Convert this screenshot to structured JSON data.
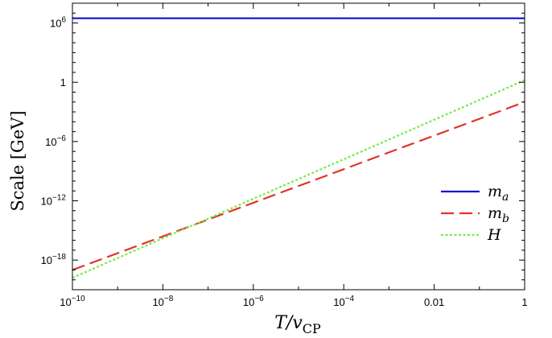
{
  "chart_data": {
    "type": "line",
    "xscale": "log",
    "yscale": "log",
    "xlabel": {
      "main": "T/v",
      "sub": "CP"
    },
    "ylabel": "Scale [GeV]",
    "xlim": [
      1e-10,
      1
    ],
    "ylim": [
      1e-21,
      100000000.0
    ],
    "x_ticks": [
      {
        "value": 1e-10,
        "base": "10",
        "exp": "−10"
      },
      {
        "value": 1e-08,
        "base": "10",
        "exp": "−8"
      },
      {
        "value": 1e-06,
        "base": "10",
        "exp": "−6"
      },
      {
        "value": 0.0001,
        "base": "10",
        "exp": "−4"
      },
      {
        "value": 0.01,
        "text": "0.01"
      },
      {
        "value": 1,
        "text": "1"
      }
    ],
    "y_ticks": [
      {
        "value": 1e-18,
        "base": "10",
        "exp": "−18"
      },
      {
        "value": 1e-12,
        "base": "10",
        "exp": "−12"
      },
      {
        "value": 1e-06,
        "base": "10",
        "exp": "−6"
      },
      {
        "value": 1,
        "text": "1"
      },
      {
        "value": 1000000.0,
        "base": "10",
        "exp": "6"
      }
    ],
    "grid": false,
    "legend_position": "right",
    "series": [
      {
        "name": "m",
        "sub": "a",
        "color": "#1010d0",
        "style": "solid",
        "x": [
          1e-10,
          1
        ],
        "y": [
          3000000.0,
          3000000.0
        ]
      },
      {
        "name": "m",
        "sub": "b",
        "color": "#e0352b",
        "style": "dashed",
        "x": [
          1e-10,
          1
        ],
        "y": [
          1e-19,
          0.01
        ]
      },
      {
        "name": "H",
        "sub": "",
        "color": "#7ce84a",
        "style": "dotted",
        "x": [
          1e-10,
          1
        ],
        "y": [
          1.6e-20,
          1.6
        ]
      }
    ]
  }
}
